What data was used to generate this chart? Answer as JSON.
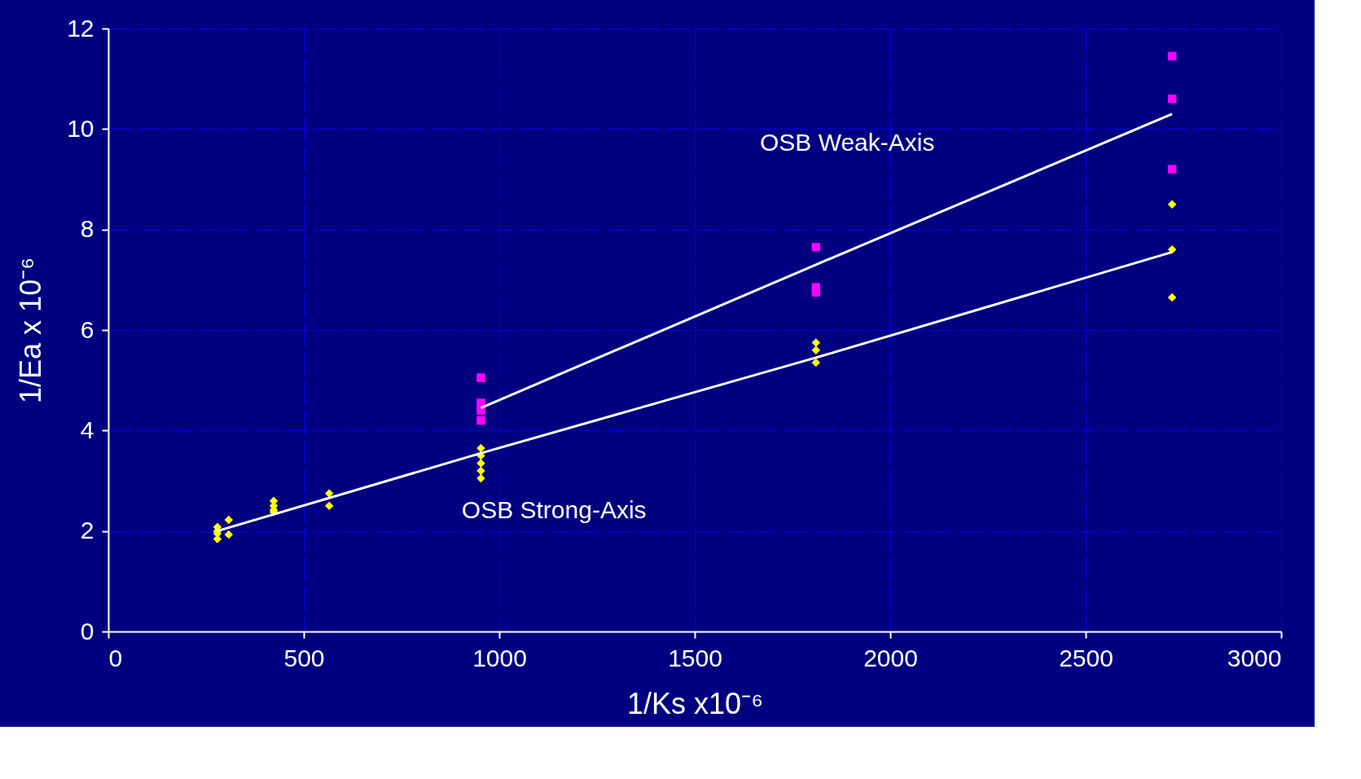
{
  "chart_data": {
    "type": "scatter",
    "xlabel": "1/Ks x10⁻⁶",
    "ylabel": "1/Ea x 10⁻⁶",
    "xlim": [
      0,
      3000
    ],
    "xticks": [
      0,
      500,
      1000,
      1500,
      2000,
      2500,
      3000
    ],
    "ylim": [
      0,
      12
    ],
    "yticks": [
      0,
      2,
      4,
      6,
      8,
      10,
      12
    ],
    "grid": true,
    "series": [
      {
        "marker": "diamond",
        "color": "#ffff00",
        "x": [
          279,
          279,
          279,
          279,
          308,
          308,
          423,
          423,
          423,
          423,
          565,
          565,
          953,
          953,
          953,
          953,
          953,
          1810,
          1810,
          1810,
          2721,
          2721,
          2721
        ],
        "values": [
          2.08,
          2.0,
          1.95,
          1.84,
          2.22,
          1.93,
          2.6,
          2.5,
          2.42,
          2.38,
          2.75,
          2.5,
          3.65,
          3.5,
          3.35,
          3.2,
          3.05,
          5.75,
          5.6,
          5.35,
          8.5,
          7.6,
          6.65
        ]
      },
      {
        "marker": "square",
        "color": "#ff00ff",
        "x": [
          953,
          953,
          953,
          953,
          1810,
          1810,
          1810,
          2721,
          2721,
          2721
        ],
        "values": [
          5.05,
          4.55,
          4.4,
          4.2,
          7.65,
          6.85,
          6.75,
          11.45,
          10.6,
          9.2
        ]
      },
      {
        "type": "line",
        "color": "#ffffff",
        "x": [
          279,
          953,
          1810,
          2721
        ],
        "values": [
          2.0,
          3.55,
          5.45,
          7.55
        ]
      },
      {
        "type": "line",
        "color": "#ffffff",
        "x": [
          953,
          1810,
          2721
        ],
        "values": [
          4.45,
          7.3,
          10.3
        ]
      }
    ],
    "annotations": [
      "OSB Weak-Axis",
      "OSB Strong-Axis"
    ]
  }
}
